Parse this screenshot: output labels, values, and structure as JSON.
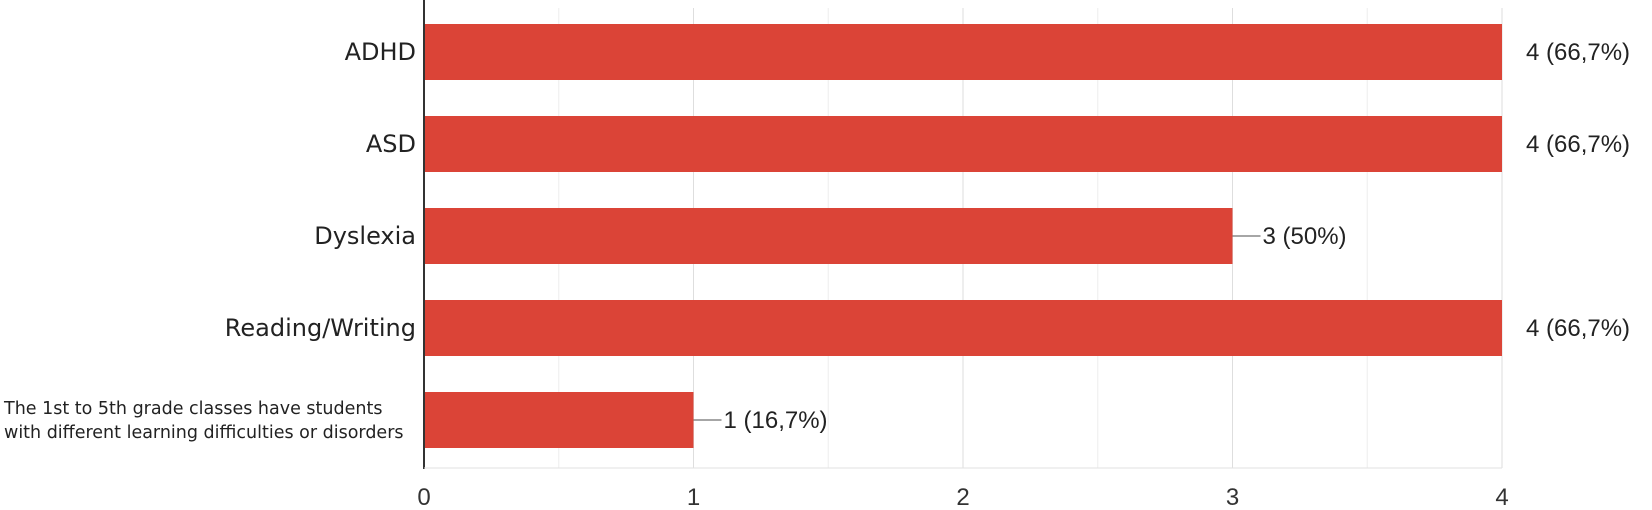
{
  "chart_data": {
    "type": "bar",
    "orientation": "horizontal",
    "categories": [
      "ADHD",
      "ASD",
      "Dyslexia",
      "Reading/Writing",
      "The 1st to 5th grade classes have students with different learning difficulties or disorders"
    ],
    "category_label_lines": [
      [
        "ADHD"
      ],
      [
        "ASD"
      ],
      [
        "Dyslexia"
      ],
      [
        "Reading/Writing"
      ],
      [
        "The 1st to 5th grade classes have students",
        "with different learning difficulties or disorders"
      ]
    ],
    "values": [
      4,
      4,
      3,
      4,
      1
    ],
    "data_labels": [
      "4 (66,7%)",
      "4 (66,7%)",
      "3 (50%)",
      "4 (66,7%)",
      "1 (16,7%)"
    ],
    "xlim": [
      0,
      4
    ],
    "xticks": [
      0,
      1,
      2,
      3,
      4
    ],
    "xtick_labels": [
      "0",
      "1",
      "2",
      "3",
      "4"
    ],
    "minor_gridlines": true,
    "grid": true,
    "title": "",
    "xlabel": "",
    "ylabel": "",
    "bar_color": "#db4437",
    "grid_color": "#e6e6e6",
    "axis_color": "#333333"
  }
}
